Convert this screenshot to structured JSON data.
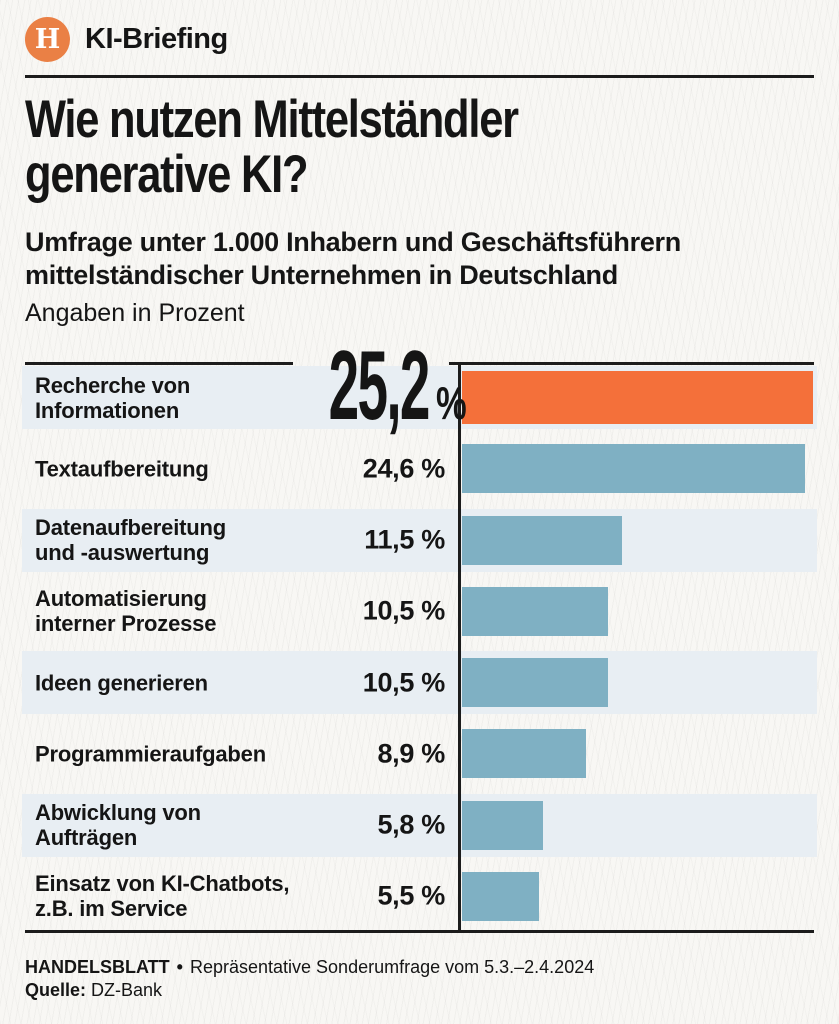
{
  "header": {
    "logo_letter": "H",
    "brand": "KI-Briefing"
  },
  "title_lines": [
    "Wie nutzen Mittelständler",
    "generative KI?"
  ],
  "subtitle_lines": [
    "Umfrage unter 1.000 Inhabern und Geschäftsführern",
    "mittelständischer Unternehmen in Deutschland"
  ],
  "unit_note": "Angaben in Prozent",
  "chart_data": {
    "type": "bar",
    "orientation": "horizontal",
    "title": "Wie nutzen Mittelständler generative KI?",
    "subtitle": "Umfrage unter 1.000 Inhabern und Geschäftsführern mittelständischer Unternehmen in Deutschland",
    "unit": "Prozent",
    "categories": [
      "Recherche von\nInformationen",
      "Textaufbereitung",
      "Datenaufbereitung\nund -auswertung",
      "Automatisierung\ninterner Prozesse",
      "Ideen generieren",
      "Programmieraufgaben",
      "Abwicklung von\nAufträgen",
      "Einsatz von KI-Chatbots,\nz.B. im Service"
    ],
    "values": [
      25.2,
      24.6,
      11.5,
      10.5,
      10.5,
      8.9,
      5.8,
      5.5
    ],
    "value_labels": [
      "25,2 %",
      "24,6 %",
      "11,5 %",
      "10,5 %",
      "10,5 %",
      "8,9 %",
      "5,8 %",
      "5,5 %"
    ],
    "highlight_index": 0,
    "big_value": "25,2",
    "big_unit": "%",
    "xlim": [
      0,
      25.2
    ],
    "grid": false,
    "legend": false,
    "colors": {
      "highlight_bar": "#f4703a",
      "default_bar": "#7fb0c3",
      "row_band": "#e8eef3",
      "axis": "#1c1c1c"
    }
  },
  "footer": {
    "brand": "HANDELSBLATT",
    "separator": "•",
    "survey_note": "Repräsentative Sonderumfrage vom 5.3.–2.4.2024",
    "source_label": "Quelle:",
    "source": "DZ-Bank"
  }
}
